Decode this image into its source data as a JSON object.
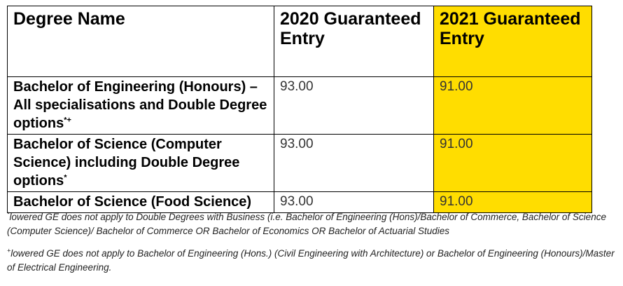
{
  "table": {
    "headers": {
      "degree": "Degree Name",
      "year2020": "2020 Guaranteed Entry",
      "year2021": "2021 Guaranteed Entry"
    },
    "rows": [
      {
        "degree": "Bachelor of Engineering (Honours) – All specialisations and Double Degree options",
        "marker": "*+",
        "v2020": "93.00",
        "v2021": "91.00"
      },
      {
        "degree": "Bachelor of Science (Computer Science) including Double Degree options",
        "marker": "*",
        "v2020": "93.00",
        "v2021": "91.00"
      },
      {
        "degree": "Bachelor of Science (Food Science)",
        "marker": "",
        "v2020": "93.00",
        "v2021": "91.00"
      }
    ],
    "highlight_color": "#FFDD00"
  },
  "notes": [
    {
      "marker": "*",
      "text": "lowered GE does not apply to Double Degrees with Business (i.e. Bachelor of Engineering (Hons)/Bachelor of Commerce, Bachelor of Science (Computer Science)/ Bachelor of Commerce OR Bachelor of Economics OR Bachelor of Actuarial Studies"
    },
    {
      "marker": "+",
      "text": "lowered GE does not apply to Bachelor of Engineering (Hons.) (Civil Engineering with Architecture) or Bachelor of Engineering (Honours)/Master of Electrical Engineering."
    }
  ]
}
